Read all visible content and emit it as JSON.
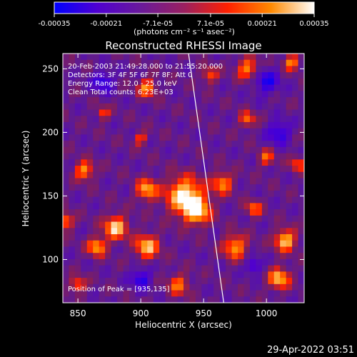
{
  "chart_data": {
    "type": "heatmap",
    "title": "Reconstructed RHESSI Image",
    "xlabel": "Heliocentric X (arcsec)",
    "ylabel": "Heliocentric Y (arcsec)",
    "xlim": [
      838,
      1030
    ],
    "ylim": [
      66,
      262
    ],
    "xticks": [
      850,
      900,
      950,
      1000
    ],
    "yticks": [
      100,
      150,
      200,
      250
    ],
    "xtick_labels": [
      "850",
      "900",
      "950",
      "1000"
    ],
    "ytick_labels": [
      "100",
      "150",
      "200",
      "250"
    ],
    "colorbar": {
      "ticks": [
        -0.00035,
        -0.00021,
        -7.1e-05,
        7.1e-05,
        0.00021,
        0.00035
      ],
      "tick_labels": [
        "-0.00035",
        "-0.00021",
        "-7.1e-05",
        "7.1e-05",
        "0.00021",
        "0.00035"
      ],
      "units_label": "(photons cm⁻² s⁻¹ asec⁻²)",
      "range": [
        -0.00035,
        0.00035
      ],
      "colors": [
        "#0000ff",
        "#5000d0",
        "#6a1a9a",
        "#9a2060",
        "#ff2000",
        "#ff8a00",
        "#ffffff"
      ]
    },
    "annotations": [
      "20-Feb-2003 21:49:28.000 to 21:55:20.000",
      "Detectors: 3F 4F 5F 6F 7F 8F; Att 0",
      "Energy Range: 12.0 - 25.0 keV",
      "Clean    Total counts: 6.23E+03"
    ],
    "peak_label": "Position of Peak = [935,135]",
    "limb_line": [
      [
        938,
        262
      ],
      [
        966,
        66
      ]
    ],
    "grid": false
  },
  "footer": {
    "timestamp": "29-Apr-2022 03:51"
  }
}
